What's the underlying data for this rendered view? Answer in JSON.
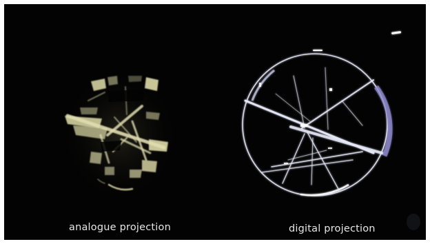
{
  "captions": {
    "left": "analogue projection",
    "right": "digital projection"
  },
  "colors": {
    "background": "#030303",
    "analogue_light": "#d8d6a8",
    "digital_light": "#e4e6f6",
    "digital_tint": "#8a86c8"
  }
}
